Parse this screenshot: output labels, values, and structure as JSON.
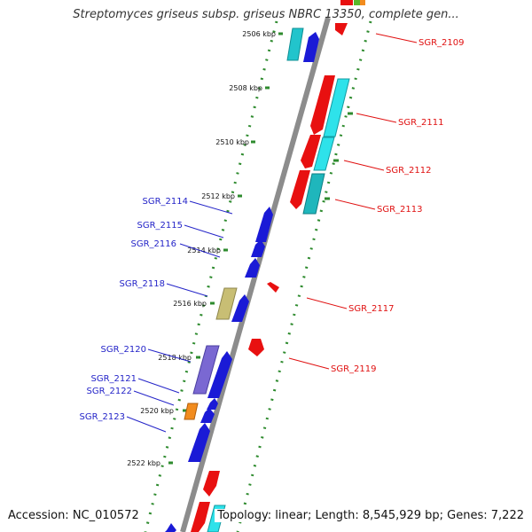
{
  "title": "Streptomyces griseus subsp. griseus NBRC 13350, complete gen...",
  "footer": {
    "accession": "Accession: NC_010572",
    "topology": "Topology: linear; Length: 8,545,929 bp; Genes: 7,222"
  },
  "colors": {
    "backbone": "#8c8c8c",
    "tick": "#2e8b2e",
    "forward_label": "#2424c8",
    "reverse_label": "#e01010"
  },
  "scale_labels": [
    "2506 kbp",
    "2508 kbp",
    "2510 kbp",
    "2512 kbp",
    "2514 kbp",
    "2516 kbp",
    "2518 kbp",
    "2520 kbp",
    "2522 kbp"
  ],
  "forward_genes": [
    "SGR_2114",
    "SGR_2115",
    "SGR_2116",
    "SGR_2118",
    "SGR_2120",
    "SGR_2121",
    "SGR_2122",
    "SGR_2123"
  ],
  "reverse_genes": [
    "SGR_2109",
    "SGR_2111",
    "SGR_2112",
    "SGR_2113",
    "SGR_2117",
    "SGR_2119"
  ]
}
